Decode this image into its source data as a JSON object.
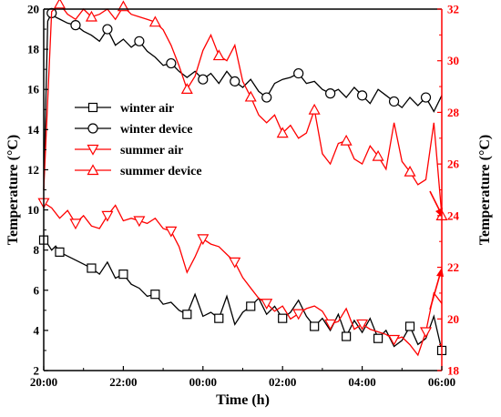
{
  "chart_data": {
    "type": "line",
    "xlabel": "Time (h)",
    "ylabel_left": "Temperature (°C)",
    "ylabel_right": "Temperature (°C)",
    "x_tick_labels": [
      "20:00",
      "22:00",
      "00:00",
      "02:00",
      "04:00",
      "06:00"
    ],
    "x_range_hours": [
      0,
      10
    ],
    "ylim_left": [
      2,
      20
    ],
    "ylim_right": [
      18,
      32
    ],
    "y_ticks_left": [
      2,
      4,
      6,
      8,
      10,
      12,
      14,
      16,
      18,
      20
    ],
    "y_ticks_right": [
      18,
      20,
      22,
      24,
      26,
      28,
      30,
      32
    ],
    "grid": false,
    "legend_position": "middle-left",
    "colors": {
      "winter": "#000000",
      "summer": "#ff0000"
    },
    "series": [
      {
        "name": "winter air",
        "axis": "left",
        "color": "#000000",
        "marker": "square",
        "x": [
          0.0,
          0.1,
          0.2,
          0.3,
          0.4,
          0.6,
          0.8,
          1.0,
          1.2,
          1.4,
          1.6,
          1.8,
          2.0,
          2.2,
          2.4,
          2.6,
          2.8,
          3.0,
          3.2,
          3.4,
          3.6,
          3.8,
          4.0,
          4.2,
          4.4,
          4.6,
          4.8,
          5.0,
          5.2,
          5.4,
          5.6,
          5.8,
          6.0,
          6.2,
          6.4,
          6.6,
          6.8,
          7.0,
          7.2,
          7.4,
          7.6,
          7.8,
          8.0,
          8.2,
          8.4,
          8.6,
          8.8,
          9.0,
          9.2,
          9.4,
          9.6,
          9.8,
          10.0
        ],
        "y": [
          8.5,
          8.3,
          8.0,
          8.2,
          7.9,
          7.7,
          7.5,
          7.3,
          7.1,
          6.8,
          7.4,
          6.6,
          6.8,
          6.3,
          6.1,
          5.7,
          5.8,
          5.3,
          5.4,
          5.0,
          4.8,
          5.8,
          4.7,
          4.9,
          4.6,
          5.7,
          4.3,
          4.9,
          5.2,
          5.6,
          4.8,
          5.2,
          4.6,
          4.9,
          5.5,
          4.7,
          4.2,
          4.6,
          4.0,
          4.8,
          3.7,
          4.5,
          3.9,
          4.6,
          3.6,
          4.0,
          3.2,
          3.5,
          4.2,
          3.3,
          3.6,
          4.7,
          3.0
        ]
      },
      {
        "name": "winter device",
        "axis": "left",
        "color": "#000000",
        "marker": "circle",
        "x": [
          0.0,
          0.1,
          0.2,
          0.3,
          0.4,
          0.6,
          0.8,
          1.0,
          1.2,
          1.4,
          1.6,
          1.8,
          2.0,
          2.2,
          2.4,
          2.6,
          2.8,
          3.0,
          3.2,
          3.4,
          3.6,
          3.8,
          4.0,
          4.2,
          4.4,
          4.6,
          4.8,
          5.0,
          5.2,
          5.4,
          5.6,
          5.8,
          6.0,
          6.2,
          6.4,
          6.6,
          6.8,
          7.0,
          7.2,
          7.4,
          7.6,
          7.8,
          8.0,
          8.2,
          8.4,
          8.6,
          8.8,
          9.0,
          9.2,
          9.4,
          9.6,
          9.8,
          10.0
        ],
        "y": [
          11.0,
          19.4,
          19.8,
          19.6,
          19.5,
          19.3,
          19.2,
          18.9,
          18.7,
          18.4,
          19.0,
          18.2,
          18.5,
          18.1,
          18.4,
          17.9,
          17.6,
          17.2,
          17.3,
          16.9,
          16.6,
          16.9,
          16.5,
          16.8,
          16.3,
          16.9,
          16.4,
          16.1,
          16.5,
          15.9,
          15.6,
          16.3,
          16.5,
          16.6,
          16.8,
          16.3,
          16.4,
          16.0,
          15.8,
          16.0,
          15.6,
          16.1,
          15.7,
          15.3,
          16.0,
          15.7,
          15.4,
          15.1,
          15.6,
          15.2,
          15.6,
          14.9,
          15.7
        ]
      },
      {
        "name": "summer air",
        "axis": "right",
        "color": "#ff0000",
        "marker": "triangle-down",
        "x": [
          0.0,
          0.2,
          0.4,
          0.6,
          0.8,
          1.0,
          1.2,
          1.4,
          1.6,
          1.8,
          2.0,
          2.2,
          2.4,
          2.6,
          2.8,
          3.0,
          3.2,
          3.4,
          3.6,
          3.8,
          4.0,
          4.2,
          4.4,
          4.6,
          4.8,
          5.0,
          5.2,
          5.4,
          5.6,
          5.8,
          6.0,
          6.2,
          6.4,
          6.6,
          6.8,
          7.0,
          7.2,
          7.4,
          7.6,
          7.8,
          8.0,
          8.2,
          8.4,
          8.6,
          8.8,
          9.0,
          9.2,
          9.4,
          9.6,
          9.8,
          10.0
        ],
        "y": [
          24.5,
          24.3,
          23.9,
          24.2,
          23.7,
          24.0,
          23.6,
          23.5,
          24.0,
          24.4,
          23.8,
          23.9,
          23.8,
          23.7,
          23.9,
          23.5,
          23.4,
          22.8,
          21.8,
          22.4,
          23.1,
          22.9,
          22.8,
          22.5,
          22.2,
          21.6,
          21.2,
          20.8,
          20.6,
          20.3,
          20.5,
          20.0,
          20.2,
          20.4,
          20.5,
          20.3,
          19.8,
          19.9,
          20.4,
          19.6,
          19.8,
          19.6,
          19.5,
          19.4,
          19.2,
          19.3,
          19.0,
          18.6,
          19.5,
          21.0,
          20.6
        ]
      },
      {
        "name": "summer device",
        "axis": "right",
        "color": "#ff0000",
        "marker": "triangle-up",
        "x": [
          0.0,
          0.2,
          0.4,
          0.6,
          0.8,
          1.0,
          1.2,
          1.4,
          1.6,
          1.8,
          2.0,
          2.2,
          2.4,
          2.6,
          2.8,
          3.0,
          3.2,
          3.4,
          3.6,
          3.8,
          4.0,
          4.2,
          4.4,
          4.6,
          4.8,
          5.0,
          5.2,
          5.4,
          5.6,
          5.8,
          6.0,
          6.2,
          6.4,
          6.6,
          6.8,
          7.0,
          7.2,
          7.4,
          7.6,
          7.8,
          8.0,
          8.2,
          8.4,
          8.6,
          8.8,
          9.0,
          9.2,
          9.4,
          9.6,
          9.8,
          10.0
        ],
        "y": [
          25.0,
          31.9,
          32.2,
          31.8,
          31.6,
          32.0,
          31.7,
          31.8,
          32.0,
          31.6,
          32.1,
          31.8,
          31.7,
          31.6,
          31.5,
          31.2,
          30.6,
          29.8,
          28.9,
          29.4,
          30.4,
          31.0,
          30.2,
          30.0,
          30.6,
          29.2,
          28.6,
          27.9,
          27.6,
          27.9,
          27.2,
          27.5,
          27.0,
          27.2,
          28.1,
          26.4,
          26.0,
          26.8,
          26.9,
          26.2,
          26.0,
          26.7,
          26.3,
          25.8,
          27.6,
          26.1,
          25.7,
          25.2,
          25.4,
          27.6,
          24.0
        ]
      }
    ]
  }
}
